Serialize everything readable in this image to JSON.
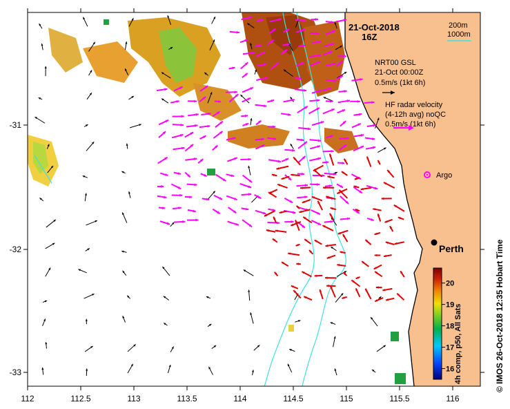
{
  "map": {
    "date_title": "21-Oct-2018",
    "time_title": "16Z",
    "depth_contours": [
      "200m",
      "1000m"
    ],
    "contour_color": "#40e0e0",
    "land_color": "#f9c08f",
    "x_ticks": [
      "112",
      "112.5",
      "113",
      "113.5",
      "114",
      "114.5",
      "115",
      "115.5",
      "116"
    ],
    "y_ticks": [
      "-31",
      "-32",
      "-33"
    ],
    "legend_gsl": {
      "line1": "NRT00 GSL",
      "line2": "21-Oct 00:00Z",
      "line3": "0.5m/s (1kt 6h)",
      "arrow_color": "#000000"
    },
    "legend_hf": {
      "line1": "HF radar velocity",
      "line2": "(4-12h avg) noQC",
      "line3": "0.5m/s (1kt 6h)",
      "arrow_color": "#ff00ff"
    },
    "argo_label": "Argo",
    "argo_color": "#ff00ff",
    "city_label": "Perth",
    "hf_qc_color": "#dd0000",
    "colorbar": {
      "ticks": [
        "20",
        "19",
        "18",
        "17",
        "16"
      ],
      "title": "4h comp, p50, All Sats",
      "min": 15.5,
      "max": 20.7
    },
    "side_caption": "© IMOS 26-Oct-2018 12:35 Hobart Time"
  }
}
